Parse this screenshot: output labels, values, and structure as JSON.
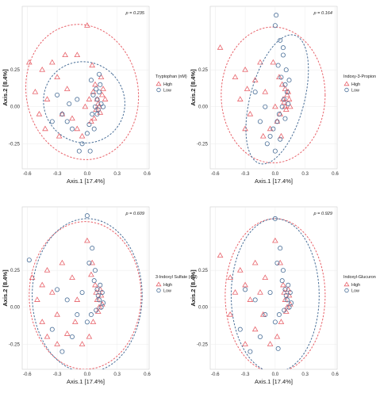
{
  "colors": {
    "high": "#e8626a",
    "low": "#4a6f98",
    "grid": "#ebebeb"
  },
  "chart_data": [
    {
      "type": "scatter",
      "title": "",
      "p_value": "p = 0.235",
      "xlabel": "Axis.1 [17.4%]",
      "ylabel": "Axis.2 [8.4%]",
      "xlim": [
        -0.65,
        0.62
      ],
      "ylim": [
        -0.42,
        0.68
      ],
      "xticks": [
        "-0.6",
        "-0.3",
        "0.0",
        "0.3",
        "0.6"
      ],
      "xtick_values": [
        -0.6,
        -0.3,
        0.0,
        0.3,
        0.6
      ],
      "yticks": [
        "-0.25",
        "0.00",
        "0.25"
      ],
      "ytick_values": [
        -0.25,
        0.0,
        0.25
      ],
      "legend_title": "Tryptophan (nM)",
      "legend_position": "right",
      "series": [
        {
          "name": "High",
          "marker": "triangle",
          "ellipse": {
            "cx": -0.05,
            "cy": 0.1,
            "rx": 0.56,
            "ry": 0.46,
            "angle": -10
          },
          "points": [
            [
              -0.58,
              0.3
            ],
            [
              -0.45,
              0.25
            ],
            [
              -0.52,
              0.1
            ],
            [
              -0.4,
              0.05
            ],
            [
              -0.35,
              0.3
            ],
            [
              -0.3,
              0.2
            ],
            [
              -0.48,
              -0.05
            ],
            [
              -0.42,
              -0.15
            ],
            [
              -0.25,
              -0.05
            ],
            [
              -0.2,
              0.12
            ],
            [
              -0.15,
              -0.08
            ],
            [
              0.0,
              0.55
            ],
            [
              -0.1,
              0.35
            ],
            [
              0.05,
              0.28
            ],
            [
              0.08,
              0.15
            ],
            [
              0.1,
              0.05
            ],
            [
              0.12,
              0.0
            ],
            [
              0.15,
              0.08
            ],
            [
              0.13,
              -0.04
            ],
            [
              0.11,
              0.02
            ],
            [
              0.09,
              -0.02
            ],
            [
              0.06,
              0.1
            ],
            [
              0.04,
              -0.1
            ],
            [
              -0.02,
              0.0
            ],
            [
              0.14,
              0.2
            ],
            [
              0.16,
              0.12
            ],
            [
              -0.28,
              -0.2
            ],
            [
              -0.05,
              -0.2
            ],
            [
              -0.1,
              -0.15
            ],
            [
              0.02,
              0.05
            ],
            [
              0.07,
              -0.08
            ],
            [
              -0.22,
              0.35
            ],
            [
              0.18,
              0.05
            ]
          ]
        },
        {
          "name": "Low",
          "marker": "circle",
          "ellipse": {
            "cx": -0.03,
            "cy": 0.03,
            "rx": 0.4,
            "ry": 0.28,
            "angle": -45
          },
          "points": [
            [
              -0.25,
              -0.05
            ],
            [
              -0.35,
              -0.1
            ],
            [
              -0.2,
              -0.1
            ],
            [
              -0.15,
              -0.15
            ],
            [
              -0.05,
              -0.25
            ],
            [
              0.0,
              -0.18
            ],
            [
              0.03,
              -0.3
            ],
            [
              0.05,
              -0.05
            ],
            [
              0.08,
              0.0
            ],
            [
              0.1,
              0.05
            ],
            [
              0.12,
              0.1
            ],
            [
              0.14,
              0.02
            ],
            [
              0.1,
              -0.05
            ],
            [
              0.06,
              0.08
            ],
            [
              0.09,
              0.12
            ],
            [
              0.13,
              0.15
            ],
            [
              0.11,
              -0.02
            ],
            [
              -0.3,
              0.08
            ],
            [
              -0.1,
              0.05
            ],
            [
              0.02,
              -0.12
            ],
            [
              -0.18,
              0.02
            ],
            [
              0.16,
              0.0
            ],
            [
              0.04,
              0.18
            ],
            [
              0.12,
              0.22
            ],
            [
              -0.08,
              -0.3
            ],
            [
              0.07,
              -0.15
            ]
          ]
        }
      ]
    },
    {
      "type": "scatter",
      "title": "",
      "p_value": "p = 0.164",
      "xlabel": "Axis.1 [17.4%]",
      "ylabel": "Axis.2 [8.4%]",
      "xlim": [
        -0.65,
        0.62
      ],
      "ylim": [
        -0.42,
        0.68
      ],
      "xticks": [
        "-0.6",
        "-0.3",
        "0.0",
        "0.3",
        "0.6"
      ],
      "xtick_values": [
        -0.6,
        -0.3,
        0.0,
        0.3,
        0.6
      ],
      "yticks": [
        "-0.25",
        "0.00",
        "0.25"
      ],
      "ytick_values": [
        -0.25,
        0.0,
        0.25
      ],
      "legend_title": "Indoxy-3-Propionic Acid (nM)",
      "legend_position": "right",
      "series": [
        {
          "name": "High",
          "marker": "triangle",
          "ellipse": {
            "cx": -0.02,
            "cy": 0.08,
            "rx": 0.52,
            "ry": 0.46,
            "angle": 0
          },
          "points": [
            [
              -0.4,
              0.2
            ],
            [
              -0.3,
              0.25
            ],
            [
              -0.28,
              0.12
            ],
            [
              -0.2,
              0.18
            ],
            [
              -0.35,
              0.05
            ],
            [
              -0.15,
              0.3
            ],
            [
              -0.1,
              0.1
            ],
            [
              -0.25,
              -0.05
            ],
            [
              0.0,
              0.0
            ],
            [
              0.05,
              -0.05
            ],
            [
              0.08,
              0.05
            ],
            [
              0.1,
              0.0
            ],
            [
              0.12,
              0.08
            ],
            [
              0.09,
              0.03
            ],
            [
              0.11,
              -0.02
            ],
            [
              0.14,
              0.05
            ],
            [
              0.13,
              0.1
            ],
            [
              0.07,
              0.15
            ],
            [
              0.04,
              0.2
            ],
            [
              0.02,
              -0.1
            ],
            [
              -0.05,
              -0.15
            ],
            [
              -0.12,
              -0.2
            ],
            [
              0.06,
              -0.2
            ],
            [
              0.15,
              0.0
            ],
            [
              -0.55,
              0.4
            ],
            [
              -0.02,
              0.3
            ],
            [
              -0.3,
              -0.15
            ],
            [
              0.1,
              0.12
            ]
          ]
        },
        {
          "name": "Low",
          "marker": "circle",
          "ellipse": {
            "cx": 0.02,
            "cy": 0.05,
            "rx": 0.27,
            "ry": 0.45,
            "angle": 15
          },
          "points": [
            [
              0.0,
              0.55
            ],
            [
              0.05,
              0.45
            ],
            [
              0.08,
              0.35
            ],
            [
              0.03,
              0.28
            ],
            [
              0.06,
              0.2
            ],
            [
              0.1,
              0.15
            ],
            [
              0.12,
              0.1
            ],
            [
              0.09,
              0.05
            ],
            [
              0.07,
              0.0
            ],
            [
              0.04,
              -0.05
            ],
            [
              0.02,
              -0.1
            ],
            [
              -0.02,
              -0.15
            ],
            [
              -0.05,
              -0.2
            ],
            [
              -0.08,
              -0.25
            ],
            [
              0.0,
              -0.3
            ],
            [
              0.05,
              -0.22
            ],
            [
              0.1,
              -0.08
            ],
            [
              0.13,
              0.02
            ],
            [
              0.11,
              0.25
            ],
            [
              0.14,
              0.18
            ],
            [
              -0.1,
              0.0
            ],
            [
              -0.15,
              -0.1
            ],
            [
              0.08,
              0.4
            ],
            [
              -0.2,
              0.1
            ],
            [
              0.01,
              0.62
            ]
          ]
        }
      ]
    },
    {
      "type": "scatter",
      "title": "",
      "p_value": "p = 0.609",
      "xlabel": "Axis.1 [17.4%]",
      "ylabel": "Axis.2 [8.4%]",
      "xlim": [
        -0.65,
        0.62
      ],
      "ylim": [
        -0.42,
        0.68
      ],
      "xticks": [
        "-0.6",
        "-0.3",
        "0.0",
        "0.3",
        "0.6"
      ],
      "xtick_values": [
        -0.6,
        -0.3,
        0.0,
        0.3,
        0.6
      ],
      "yticks": [
        "-0.25",
        "0.00",
        "0.25"
      ],
      "ytick_values": [
        -0.25,
        0.0,
        0.25
      ],
      "legend_title": "3-Indoxyl Sulfate (nM)",
      "legend_position": "right",
      "series": [
        {
          "name": "High",
          "marker": "triangle",
          "ellipse": {
            "cx": -0.02,
            "cy": 0.08,
            "rx": 0.56,
            "ry": 0.5,
            "angle": 0
          },
          "points": [
            [
              -0.55,
              0.2
            ],
            [
              -0.45,
              0.15
            ],
            [
              -0.5,
              0.05
            ],
            [
              -0.4,
              0.25
            ],
            [
              -0.35,
              0.1
            ],
            [
              -0.3,
              -0.05
            ],
            [
              -0.45,
              -0.1
            ],
            [
              -0.25,
              0.3
            ],
            [
              -0.15,
              0.2
            ],
            [
              -0.1,
              0.05
            ],
            [
              0.0,
              0.45
            ],
            [
              0.05,
              0.3
            ],
            [
              0.08,
              0.15
            ],
            [
              0.1,
              0.05
            ],
            [
              0.12,
              0.0
            ],
            [
              0.14,
              0.08
            ],
            [
              0.11,
              -0.03
            ],
            [
              0.09,
              0.1
            ],
            [
              0.13,
              0.12
            ],
            [
              0.06,
              -0.1
            ],
            [
              0.02,
              -0.2
            ],
            [
              -0.05,
              -0.25
            ],
            [
              -0.2,
              -0.18
            ],
            [
              -0.3,
              -0.25
            ],
            [
              -0.4,
              -0.2
            ],
            [
              0.15,
              0.02
            ],
            [
              -0.12,
              -0.1
            ],
            [
              0.04,
              0.22
            ]
          ]
        },
        {
          "name": "Low",
          "marker": "circle",
          "ellipse": {
            "cx": 0.0,
            "cy": 0.08,
            "rx": 0.55,
            "ry": 0.52,
            "angle": 0
          },
          "points": [
            [
              -0.58,
              0.32
            ],
            [
              0.0,
              0.62
            ],
            [
              0.05,
              0.4
            ],
            [
              0.08,
              0.25
            ],
            [
              0.1,
              0.12
            ],
            [
              0.12,
              0.05
            ],
            [
              0.14,
              0.0
            ],
            [
              0.11,
              0.08
            ],
            [
              0.09,
              -0.02
            ],
            [
              0.13,
              0.15
            ],
            [
              0.07,
              0.18
            ],
            [
              -0.05,
              0.1
            ],
            [
              -0.1,
              -0.05
            ],
            [
              -0.2,
              0.05
            ],
            [
              -0.3,
              0.12
            ],
            [
              -0.35,
              -0.15
            ],
            [
              -0.25,
              -0.3
            ],
            [
              0.0,
              -0.1
            ],
            [
              0.04,
              -0.05
            ],
            [
              0.15,
              0.1
            ],
            [
              0.16,
              0.03
            ],
            [
              -0.15,
              -0.2
            ],
            [
              0.02,
              0.3
            ]
          ]
        }
      ]
    },
    {
      "type": "scatter",
      "title": "",
      "p_value": "p = 0.929",
      "xlabel": "Axis.1 [17.4%]",
      "ylabel": "Axis.2 [8.4%]",
      "xlim": [
        -0.65,
        0.62
      ],
      "ylim": [
        -0.42,
        0.68
      ],
      "xticks": [
        "-0.6",
        "-0.3",
        "0.0",
        "0.3",
        "0.6"
      ],
      "xtick_values": [
        -0.6,
        -0.3,
        0.0,
        0.3,
        0.6
      ],
      "yticks": [
        "-0.25",
        "0.00",
        "0.25"
      ],
      "ytick_values": [
        -0.25,
        0.0,
        0.25
      ],
      "legend_title": "Indoxyl-Glucuronide (nM)",
      "legend_position": "right",
      "series": [
        {
          "name": "High",
          "marker": "triangle",
          "ellipse": {
            "cx": 0.0,
            "cy": 0.08,
            "rx": 0.5,
            "ry": 0.52,
            "angle": 0
          },
          "points": [
            [
              -0.55,
              0.35
            ],
            [
              -0.45,
              0.2
            ],
            [
              -0.4,
              0.1
            ],
            [
              -0.35,
              0.25
            ],
            [
              -0.3,
              0.15
            ],
            [
              -0.25,
              0.05
            ],
            [
              -0.45,
              -0.05
            ],
            [
              -0.2,
              0.3
            ],
            [
              -0.1,
              0.2
            ],
            [
              0.0,
              0.45
            ],
            [
              0.05,
              0.3
            ],
            [
              0.08,
              0.15
            ],
            [
              0.1,
              0.05
            ],
            [
              0.12,
              0.0
            ],
            [
              0.14,
              0.08
            ],
            [
              0.09,
              0.1
            ],
            [
              0.11,
              -0.03
            ],
            [
              0.06,
              -0.1
            ],
            [
              0.02,
              -0.2
            ],
            [
              -0.05,
              -0.25
            ],
            [
              -0.2,
              -0.15
            ],
            [
              -0.3,
              -0.25
            ],
            [
              0.13,
              0.12
            ],
            [
              -0.12,
              -0.05
            ],
            [
              0.15,
              0.02
            ],
            [
              -0.15,
              0.1
            ]
          ]
        },
        {
          "name": "Low",
          "marker": "circle",
          "ellipse": {
            "cx": 0.0,
            "cy": 0.08,
            "rx": 0.44,
            "ry": 0.52,
            "angle": 0
          },
          "points": [
            [
              0.0,
              0.6
            ],
            [
              0.05,
              0.4
            ],
            [
              0.08,
              0.25
            ],
            [
              0.1,
              0.12
            ],
            [
              0.12,
              0.05
            ],
            [
              0.14,
              0.0
            ],
            [
              0.11,
              0.08
            ],
            [
              0.09,
              -0.02
            ],
            [
              0.13,
              0.15
            ],
            [
              0.07,
              0.18
            ],
            [
              -0.05,
              0.1
            ],
            [
              -0.1,
              -0.05
            ],
            [
              -0.2,
              0.05
            ],
            [
              -0.3,
              0.12
            ],
            [
              -0.35,
              -0.15
            ],
            [
              -0.25,
              -0.3
            ],
            [
              0.0,
              -0.1
            ],
            [
              0.04,
              -0.05
            ],
            [
              0.15,
              0.1
            ],
            [
              0.16,
              0.03
            ],
            [
              -0.15,
              -0.2
            ],
            [
              0.02,
              0.3
            ],
            [
              0.03,
              -0.28
            ]
          ]
        }
      ]
    }
  ]
}
